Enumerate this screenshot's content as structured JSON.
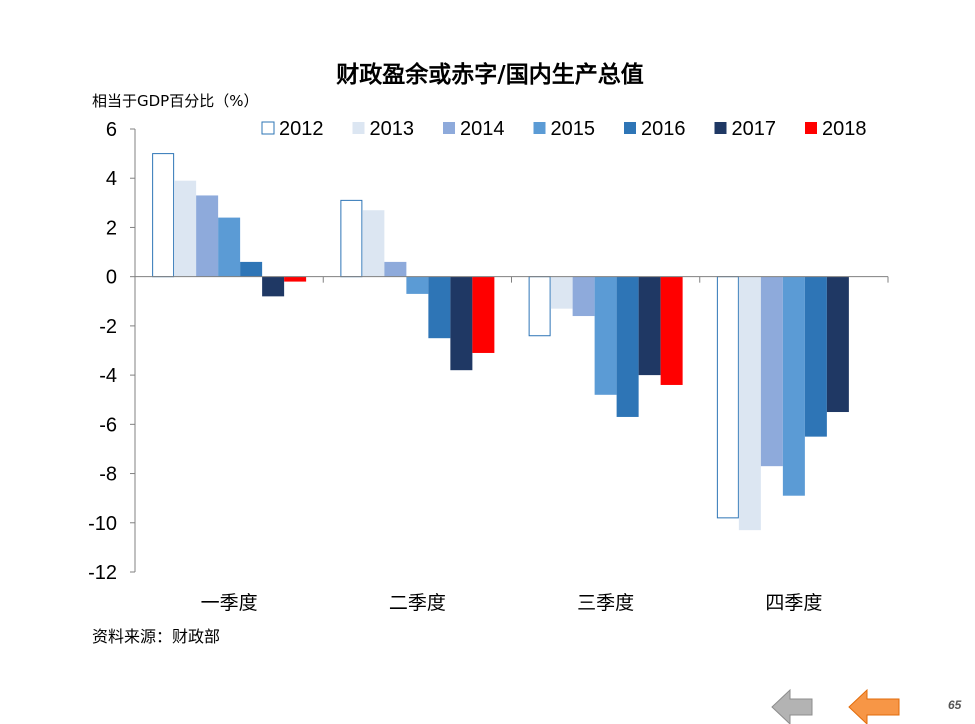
{
  "chart_data": {
    "type": "bar",
    "title": "财政盈余或赤字/国内生产总值",
    "ylabel": "相当于GDP百分比（%）",
    "xlabel": "",
    "ylim": [
      -12,
      6
    ],
    "yticks": [
      6,
      4,
      2,
      0,
      -2,
      -4,
      -6,
      -8,
      -10,
      -12
    ],
    "categories": [
      "一季度",
      "二季度",
      "三季度",
      "四季度"
    ],
    "legend_position": "top",
    "grid": false,
    "series": [
      {
        "name": "2012",
        "color": "#ffffff",
        "stroke": "#2e75b6",
        "values": [
          5.0,
          3.1,
          -2.4,
          -9.8
        ]
      },
      {
        "name": "2013",
        "color": "#dce6f2",
        "stroke": "#dce6f2",
        "values": [
          3.9,
          2.7,
          -1.3,
          -10.3
        ]
      },
      {
        "name": "2014",
        "color": "#8eaadb",
        "stroke": "#8eaadb",
        "values": [
          3.3,
          0.6,
          -1.6,
          -7.7
        ]
      },
      {
        "name": "2015",
        "color": "#5b9bd5",
        "stroke": "#5b9bd5",
        "values": [
          2.4,
          -0.7,
          -4.8,
          -8.9
        ]
      },
      {
        "name": "2016",
        "color": "#2e75b6",
        "stroke": "#2e75b6",
        "values": [
          0.6,
          -2.5,
          -5.7,
          -6.5
        ]
      },
      {
        "name": "2017",
        "color": "#1f3864",
        "stroke": "#1f3864",
        "values": [
          -0.8,
          -3.8,
          -4.0,
          -5.5
        ]
      },
      {
        "name": "2018",
        "color": "#ff0000",
        "stroke": "#ff0000",
        "values": [
          -0.2,
          -3.1,
          -4.4,
          null
        ]
      }
    ]
  },
  "source": "资料来源：财政部",
  "page_number": "65",
  "nav": {
    "prev_color": "#b3b3b3",
    "next_color": "#f79646"
  }
}
